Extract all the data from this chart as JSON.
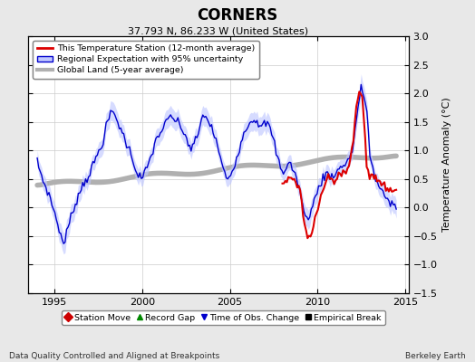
{
  "title": "CORNERS",
  "subtitle": "37.793 N, 86.233 W (United States)",
  "ylabel": "Temperature Anomaly (°C)",
  "xlabel_left": "Data Quality Controlled and Aligned at Breakpoints",
  "xlabel_right": "Berkeley Earth",
  "ylim": [
    -1.5,
    3.0
  ],
  "xlim": [
    1993.5,
    2015.2
  ],
  "yticks": [
    -1.5,
    -1.0,
    -0.5,
    0.0,
    0.5,
    1.0,
    1.5,
    2.0,
    2.5,
    3.0
  ],
  "xticks": [
    1995,
    2000,
    2005,
    2010,
    2015
  ],
  "background_color": "#e8e8e8",
  "plot_bg_color": "#ffffff",
  "red_color": "#dd0000",
  "blue_color": "#0000cc",
  "blue_fill_color": "#c0c8ff",
  "gray_color": "#b0b0b0",
  "legend_items": [
    "This Temperature Station (12-month average)",
    "Regional Expectation with 95% uncertainty",
    "Global Land (5-year average)"
  ],
  "marker_legend": [
    {
      "label": "Station Move",
      "color": "#cc0000",
      "marker": "D"
    },
    {
      "label": "Record Gap",
      "color": "#008800",
      "marker": "^"
    },
    {
      "label": "Time of Obs. Change",
      "color": "#0000cc",
      "marker": "v"
    },
    {
      "label": "Empirical Break",
      "color": "#000000",
      "marker": "s"
    }
  ]
}
